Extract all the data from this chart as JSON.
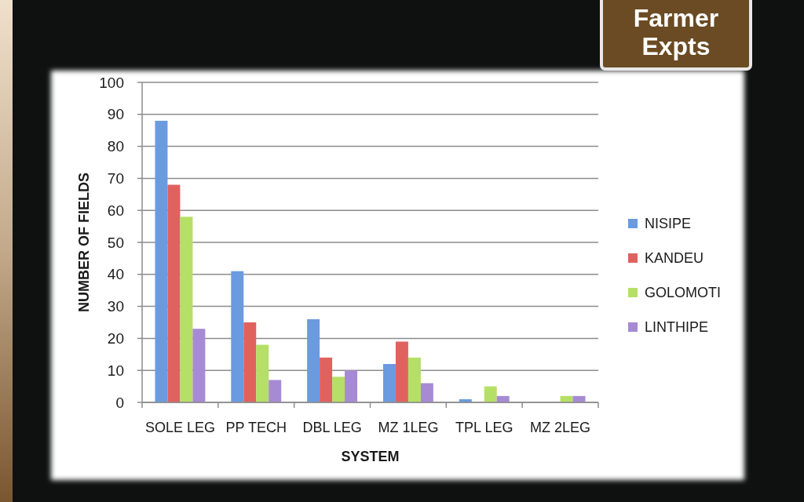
{
  "chart_data": {
    "type": "bar",
    "title": "Farmer Expts",
    "xlabel": "SYSTEM",
    "ylabel": "NUMBER OF FIELDS",
    "categories": [
      "SOLE LEG",
      "PP TECH",
      "DBL LEG",
      "MZ 1LEG",
      "TPL LEG",
      "MZ 2LEG"
    ],
    "series": [
      {
        "name": "NISIPE",
        "color": "#6a9be0",
        "values": [
          88,
          41,
          26,
          12,
          1,
          0
        ]
      },
      {
        "name": "KANDEU",
        "color": "#e0625f",
        "values": [
          68,
          25,
          14,
          19,
          0,
          0
        ]
      },
      {
        "name": "GOLOMOTI",
        "color": "#b5df66",
        "values": [
          58,
          18,
          8,
          14,
          5,
          2
        ]
      },
      {
        "name": "LINTHIPE",
        "color": "#a68bd4",
        "values": [
          23,
          7,
          10,
          6,
          2,
          2
        ]
      }
    ],
    "ylim": [
      0,
      100
    ],
    "yticks": [
      0,
      10,
      20,
      30,
      40,
      50,
      60,
      70,
      80,
      90,
      100
    ],
    "grid": "y",
    "legend": "right"
  }
}
